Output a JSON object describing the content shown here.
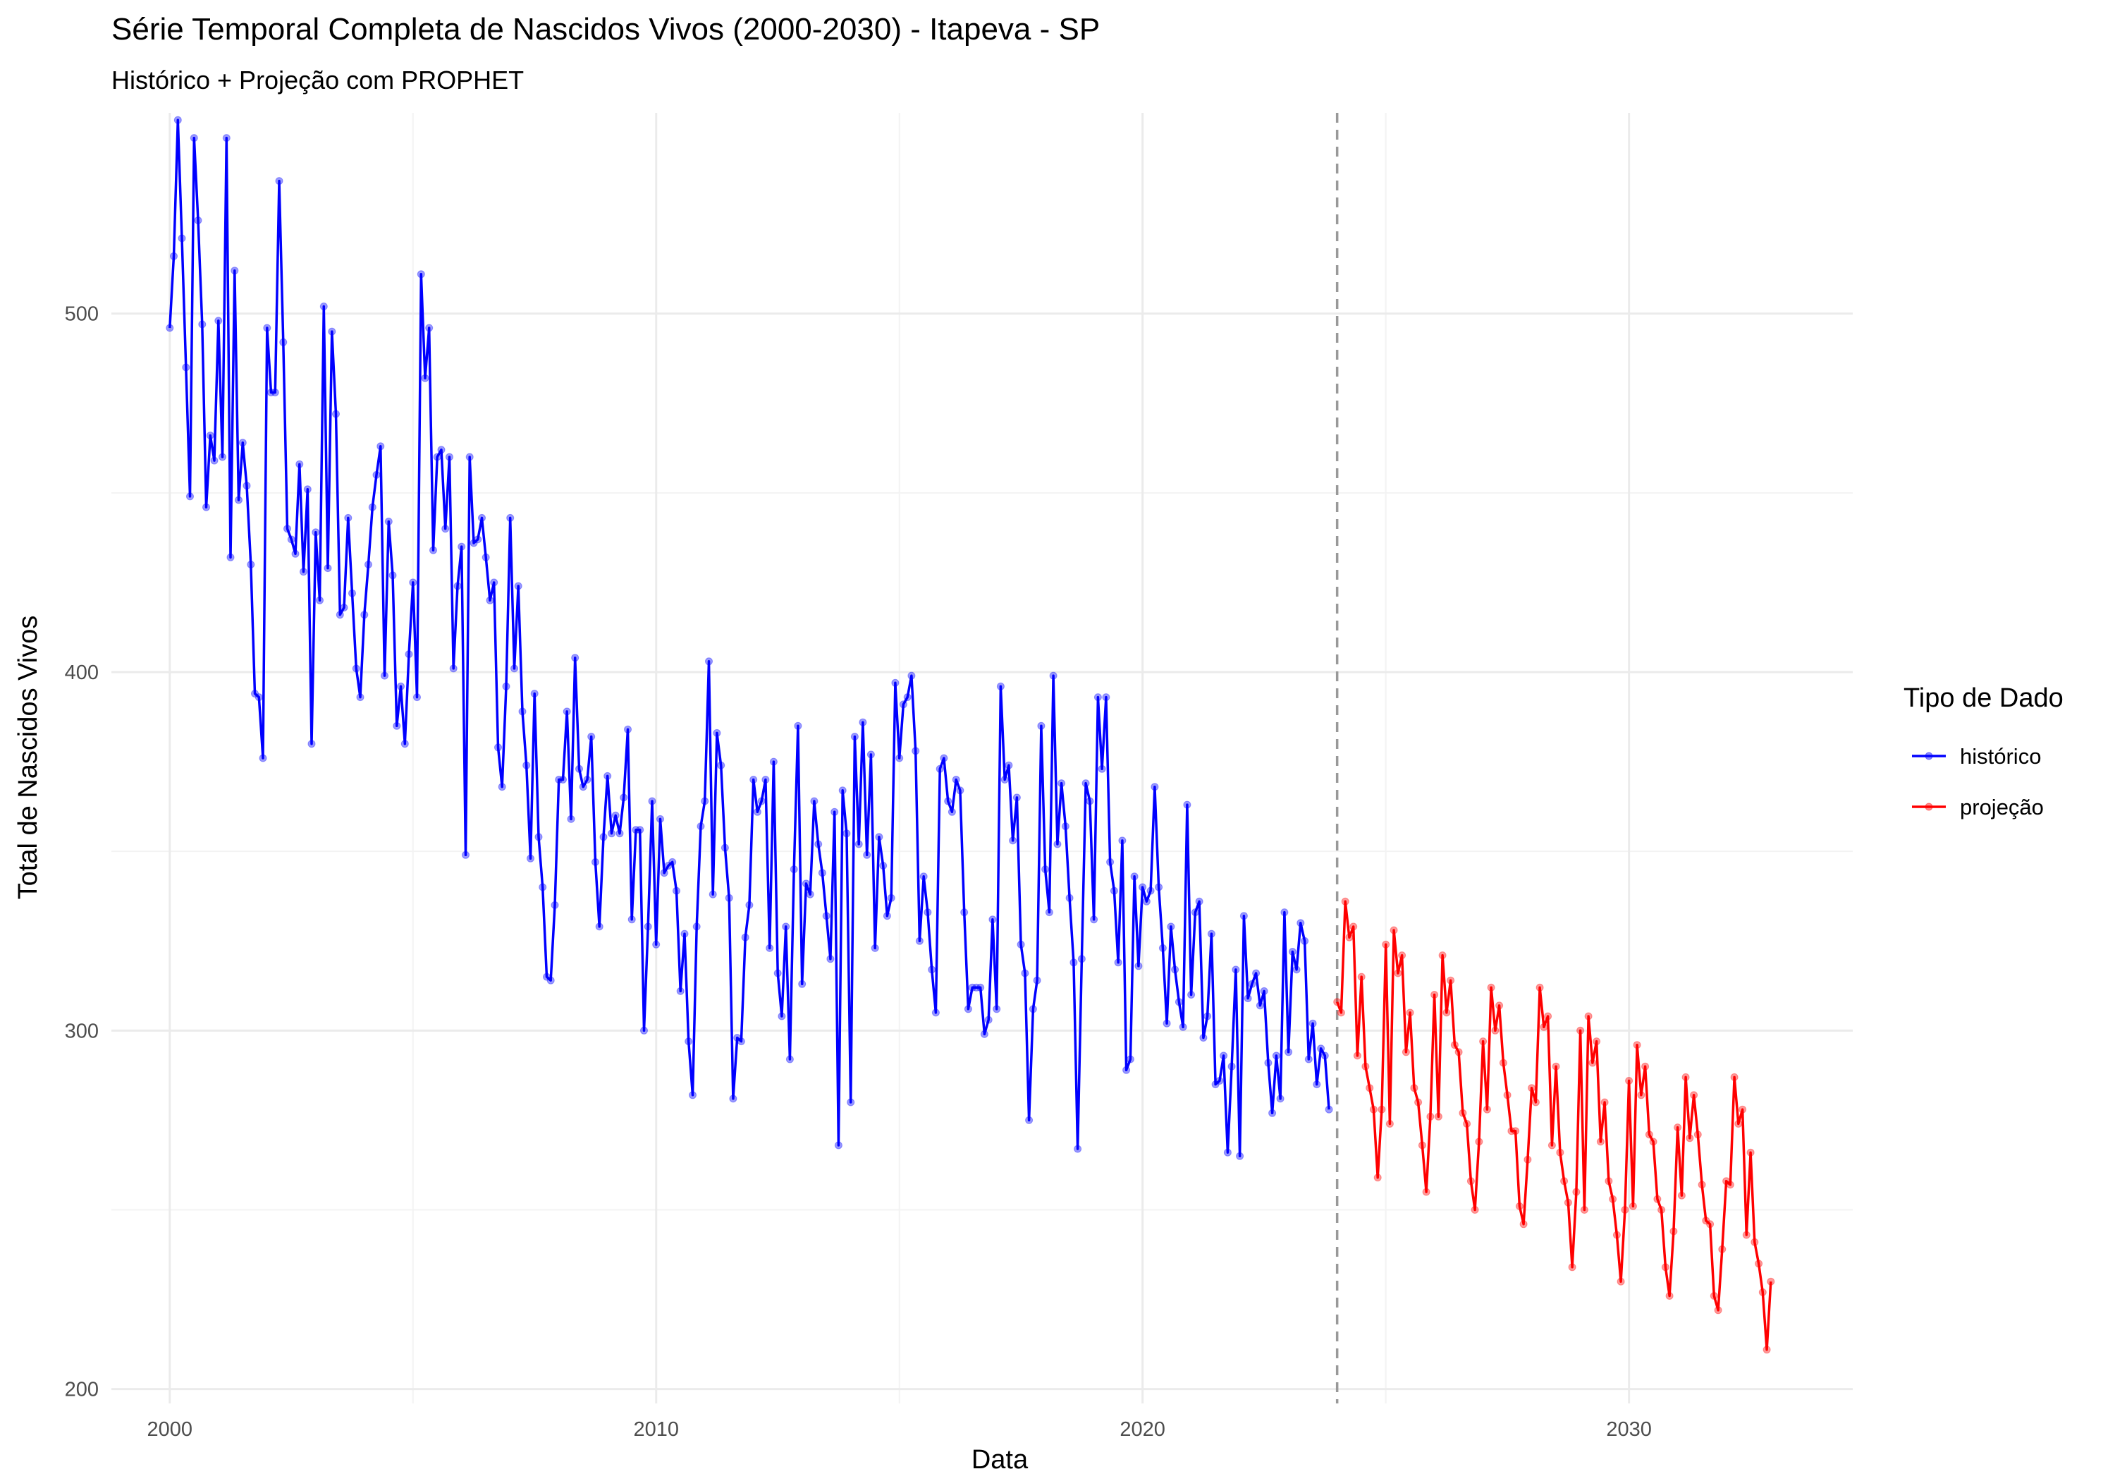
{
  "chart_data": {
    "type": "line",
    "title": "Série Temporal Completa de Nascidos Vivos (2000-2030) -  Itapeva - SP",
    "subtitle": "Histórico + Projeção com PROPHET",
    "xlabel": "Data",
    "ylabel": "Total de Nascidos Vivos",
    "xlim": [
      1998.8,
      2034.6
    ],
    "ylim": [
      196,
      556
    ],
    "x_ticks": [
      2000,
      2010,
      2020,
      2030
    ],
    "y_ticks": [
      200,
      300,
      400,
      500
    ],
    "x_tick_labels": [
      "2000",
      "2010",
      "2020",
      "2030"
    ],
    "y_tick_labels": [
      "200",
      "300",
      "400",
      "500"
    ],
    "grid": true,
    "vline": {
      "x": 2024.0,
      "style": "dashed",
      "color": "#999999"
    },
    "legend": {
      "title": "Tipo de Dado",
      "position": "right",
      "entries": [
        {
          "label": "histórico",
          "color": "#0000ff"
        },
        {
          "label": "projeção",
          "color": "#ff0000"
        }
      ]
    },
    "series": [
      {
        "name": "histórico",
        "color": "#0000ff",
        "x_start": 2000.0,
        "step": 0.08333,
        "values": [
          496,
          516,
          554,
          521,
          485,
          449,
          549,
          526,
          497,
          446,
          466,
          459,
          498,
          460,
          549,
          432,
          512,
          448,
          464,
          452,
          430,
          394,
          393,
          376,
          496,
          478,
          478,
          537,
          492,
          440,
          437,
          433,
          458,
          428,
          451,
          380,
          439,
          420,
          502,
          429,
          495,
          472,
          416,
          418,
          443,
          422,
          401,
          393,
          416,
          430,
          446,
          455,
          463,
          399,
          442,
          427,
          385,
          396,
          380,
          405,
          425,
          393,
          511,
          482,
          496,
          434,
          460,
          462,
          440,
          460,
          401,
          424,
          435,
          349,
          460,
          436,
          437,
          443,
          432,
          420,
          425,
          379,
          368,
          396,
          443,
          401,
          424,
          389,
          374,
          348,
          394,
          354,
          340,
          315,
          314,
          335,
          370,
          370,
          389,
          359,
          404,
          373,
          368,
          370,
          382,
          347,
          329,
          354,
          371,
          355,
          360,
          355,
          365,
          384,
          331,
          356,
          356,
          300,
          329,
          364,
          324,
          359,
          344,
          346,
          347,
          339,
          311,
          327,
          297,
          282,
          329,
          357,
          364,
          403,
          338,
          383,
          374,
          351,
          337,
          281,
          298,
          297,
          326,
          335,
          370,
          361,
          364,
          370,
          323,
          375,
          316,
          304,
          329,
          292,
          345,
          385,
          313,
          341,
          338,
          364,
          352,
          344,
          332,
          320,
          361,
          268,
          367,
          355,
          280,
          382,
          352,
          386,
          349,
          377,
          323,
          354,
          346,
          332,
          337,
          397,
          376,
          391,
          393,
          399,
          378,
          325,
          343,
          333,
          317,
          305,
          373,
          376,
          364,
          361,
          370,
          367,
          333,
          306,
          312,
          312,
          312,
          299,
          303,
          331,
          306,
          396,
          370,
          374,
          353,
          365,
          324,
          316,
          275,
          306,
          314,
          385,
          345,
          333,
          399,
          352,
          369,
          357,
          337,
          319,
          267,
          320,
          369,
          364,
          331,
          393,
          373,
          393,
          347,
          339,
          319,
          353,
          289,
          292,
          343,
          318,
          340,
          336,
          339,
          368,
          340,
          323,
          302,
          329,
          317,
          308,
          301,
          363,
          310,
          333,
          336,
          298,
          304,
          327,
          285,
          286,
          293,
          266,
          290,
          317,
          265,
          332,
          309,
          313,
          316,
          307,
          311,
          291,
          277,
          293,
          281,
          333,
          294,
          322,
          317,
          330,
          325,
          292,
          302,
          285,
          295,
          293,
          278
        ]
      },
      {
        "name": "projeção",
        "color": "#ff0000",
        "x_start": 2024.0,
        "step": 0.08333,
        "values": [
          308,
          305,
          336,
          326,
          329,
          293,
          315,
          290,
          284,
          278,
          259,
          278,
          324,
          274,
          328,
          316,
          321,
          294,
          305,
          284,
          280,
          268,
          255,
          276,
          310,
          276,
          321,
          305,
          314,
          296,
          294,
          277,
          274,
          258,
          250,
          269,
          297,
          278,
          312,
          300,
          307,
          291,
          282,
          272,
          272,
          251,
          246,
          264,
          284,
          280,
          312,
          301,
          304,
          268,
          290,
          266,
          258,
          252,
          234,
          255,
          300,
          250,
          304,
          291,
          297,
          269,
          280,
          258,
          253,
          243,
          230,
          250,
          286,
          251,
          296,
          282,
          290,
          271,
          269,
          253,
          250,
          234,
          226,
          244,
          273,
          254,
          287,
          270,
          282,
          271,
          257,
          247,
          246,
          226,
          222,
          239,
          258,
          257,
          287,
          274,
          278,
          243,
          266,
          241,
          235,
          227,
          211,
          230
        ]
      }
    ]
  }
}
